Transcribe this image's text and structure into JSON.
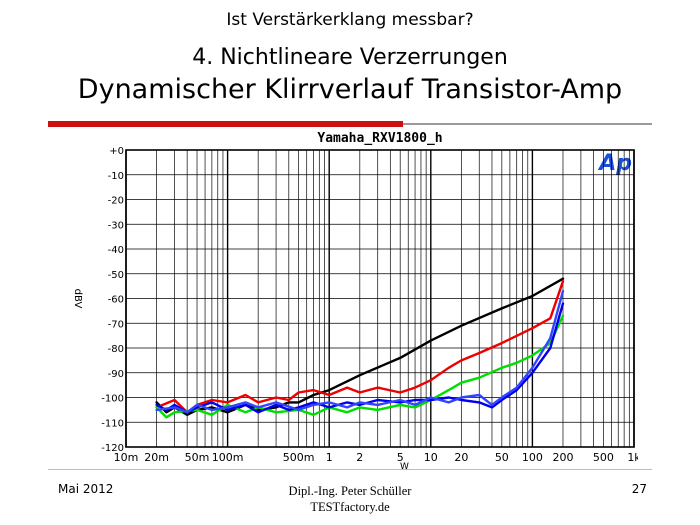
{
  "slide": {
    "top_title": "Ist Verstärkerklang messbar?",
    "heading1": "4. Nichtlineare Verzerrungen",
    "heading2": "Dynamischer Klirrverlauf Transistor-Amp",
    "footer_left": "Mai 2012",
    "footer_center_line1": "Dipl.-Ing. Peter Schüller",
    "footer_center_line2": "TESTfactory.de",
    "page_number": "27",
    "accent_color": "#cc1111"
  },
  "chart_data": {
    "type": "line",
    "title": "Yamaha_RXV1800_h",
    "logo_text": "Ap",
    "xlabel": "W",
    "ylabel": "dBV",
    "x_scale": "log",
    "xlim": [
      0.01,
      1000
    ],
    "ylim": [
      -120,
      0
    ],
    "grid": true,
    "x_tick_values": [
      0.01,
      0.02,
      0.05,
      0.1,
      0.5,
      1,
      2,
      5,
      10,
      20,
      50,
      100,
      200,
      500,
      1000
    ],
    "x_tick_labels": [
      "10m",
      "20m",
      "50m",
      "100m",
      "500m",
      "1",
      "2",
      "5",
      "10",
      "20",
      "50",
      "100",
      "200",
      "500",
      "1k"
    ],
    "y_tick_values": [
      0,
      -10,
      -20,
      -30,
      -40,
      -50,
      -60,
      -70,
      -80,
      -90,
      -100,
      -110,
      -120
    ],
    "y_tick_labels": [
      "+0",
      "-10",
      "-20",
      "-30",
      "-40",
      "-50",
      "-60",
      "-70",
      "-80",
      "-90",
      "-100",
      "-110",
      "-120"
    ],
    "series": [
      {
        "color": "#000000",
        "x": [
          0.02,
          0.025,
          0.03,
          0.04,
          0.05,
          0.07,
          0.1,
          0.15,
          0.2,
          0.3,
          0.4,
          0.5,
          0.7,
          1,
          2,
          5,
          10,
          20,
          50,
          100,
          200
        ],
        "y": [
          -102,
          -106,
          -104,
          -107,
          -105,
          -104,
          -106,
          -103,
          -105,
          -104,
          -102,
          -102,
          -99,
          -97,
          -91,
          -84,
          -77,
          -71,
          -64,
          -59,
          -52
        ]
      },
      {
        "color": "#ee0000",
        "x": [
          0.02,
          0.03,
          0.04,
          0.05,
          0.07,
          0.1,
          0.15,
          0.2,
          0.3,
          0.4,
          0.5,
          0.7,
          1,
          1.5,
          2,
          3,
          5,
          7,
          10,
          15,
          20,
          30,
          50,
          100,
          150,
          200
        ],
        "y": [
          -104,
          -101,
          -106,
          -103,
          -101,
          -102,
          -99,
          -102,
          -100,
          -101,
          -98,
          -97,
          -99,
          -96,
          -98,
          -96,
          -98,
          -96,
          -93,
          -88,
          -85,
          -82,
          -78,
          -72,
          -68,
          -53
        ]
      },
      {
        "color": "#00dd00",
        "x": [
          0.02,
          0.025,
          0.03,
          0.05,
          0.07,
          0.1,
          0.15,
          0.2,
          0.3,
          0.5,
          0.7,
          1,
          1.5,
          2,
          3,
          5,
          7,
          10,
          15,
          20,
          30,
          50,
          70,
          100,
          150,
          200
        ],
        "y": [
          -104,
          -108,
          -106,
          -105,
          -107,
          -103,
          -106,
          -104,
          -106,
          -105,
          -107,
          -104,
          -106,
          -104,
          -105,
          -103,
          -104,
          -101,
          -97,
          -94,
          -92,
          -88,
          -86,
          -83,
          -78,
          -67
        ]
      },
      {
        "color": "#0000ee",
        "x": [
          0.02,
          0.025,
          0.03,
          0.04,
          0.05,
          0.07,
          0.1,
          0.15,
          0.2,
          0.3,
          0.4,
          0.5,
          0.7,
          1,
          1.5,
          2,
          3,
          5,
          7,
          10,
          15,
          20,
          30,
          40,
          50,
          70,
          100,
          150,
          200
        ],
        "y": [
          -103,
          -105,
          -103,
          -106,
          -104,
          -102,
          -105,
          -103,
          -106,
          -103,
          -105,
          -104,
          -102,
          -104,
          -102,
          -103,
          -101,
          -102,
          -101,
          -101,
          -100,
          -101,
          -102,
          -104,
          -101,
          -97,
          -90,
          -80,
          -62
        ]
      },
      {
        "color": "#3344ff",
        "x": [
          0.02,
          0.03,
          0.04,
          0.05,
          0.07,
          0.1,
          0.15,
          0.2,
          0.3,
          0.5,
          0.7,
          1,
          1.5,
          2,
          3,
          5,
          7,
          10,
          15,
          20,
          30,
          40,
          50,
          70,
          100,
          150,
          200
        ],
        "y": [
          -105,
          -104,
          -106,
          -103,
          -105,
          -104,
          -102,
          -104,
          -102,
          -105,
          -103,
          -102,
          -104,
          -102,
          -103,
          -101,
          -103,
          -100,
          -102,
          -100,
          -99,
          -103,
          -100,
          -96,
          -88,
          -76,
          -57
        ]
      }
    ]
  }
}
